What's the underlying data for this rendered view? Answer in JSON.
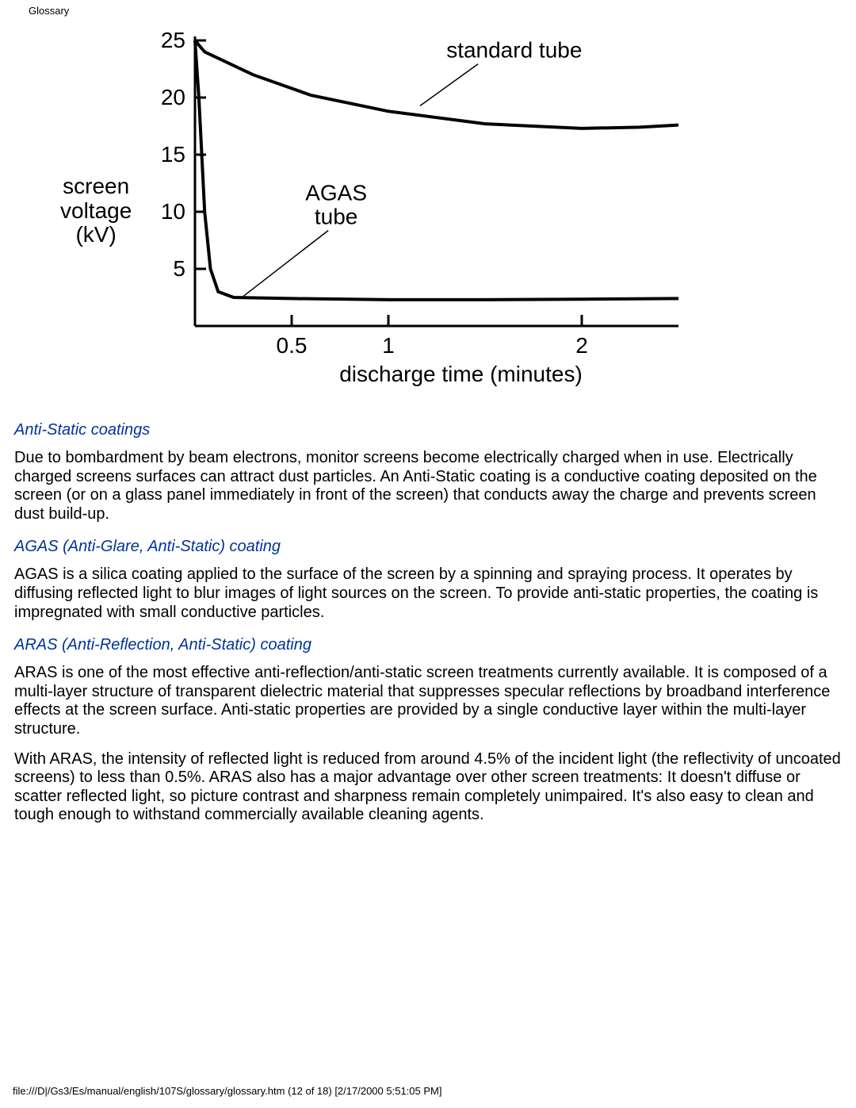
{
  "header": {
    "title": "Glossary"
  },
  "chart": {
    "type": "line",
    "ylabel_line1": "screen",
    "ylabel_line2": "voltage",
    "ylabel_line3": "(kV)",
    "xlabel": "discharge time (minutes)",
    "y_ticks": [
      {
        "value": 5,
        "label": "5"
      },
      {
        "value": 10,
        "label": "10"
      },
      {
        "value": 15,
        "label": "15"
      },
      {
        "value": 20,
        "label": "20"
      },
      {
        "value": 25,
        "label": "25"
      }
    ],
    "x_ticks": [
      {
        "value": 0.5,
        "label": "0.5"
      },
      {
        "value": 1,
        "label": "1"
      },
      {
        "value": 2,
        "label": "2"
      }
    ],
    "ylim": [
      0,
      25
    ],
    "xlim": [
      0,
      2.5
    ],
    "curves": {
      "standard": {
        "label": "standard tube",
        "color": "#000000",
        "width": 4,
        "points": [
          [
            0,
            25
          ],
          [
            0.05,
            24
          ],
          [
            0.3,
            22
          ],
          [
            0.6,
            20.2
          ],
          [
            1.0,
            18.8
          ],
          [
            1.5,
            17.7
          ],
          [
            2.0,
            17.3
          ],
          [
            2.3,
            17.4
          ],
          [
            2.5,
            17.6
          ]
        ],
        "label_anchor": [
          1.3,
          23.5
        ],
        "leader_to": [
          1.0,
          19.0
        ]
      },
      "agas": {
        "label_line1": "AGAS",
        "label_line2": "tube",
        "color": "#000000",
        "width": 4,
        "points": [
          [
            0,
            25
          ],
          [
            0.02,
            20
          ],
          [
            0.05,
            10
          ],
          [
            0.08,
            5
          ],
          [
            0.12,
            3
          ],
          [
            0.2,
            2.5
          ],
          [
            0.5,
            2.4
          ],
          [
            1.0,
            2.3
          ],
          [
            1.5,
            2.3
          ],
          [
            2.0,
            2.35
          ],
          [
            2.5,
            2.4
          ]
        ],
        "label_anchor": [
          0.73,
          11
        ],
        "leader_to": [
          0.25,
          2.6
        ]
      }
    },
    "axis_color": "#000000",
    "background_color": "#ffffff",
    "tick_fontsize": 28,
    "label_fontsize": 28
  },
  "terms": [
    {
      "id": "anti-static-coatings",
      "heading": "Anti-Static coatings",
      "paragraphs": [
        "Due to bombardment by beam electrons, monitor screens become electrically charged when in use. Electrically charged screens surfaces can attract dust particles. An Anti-Static coating is a conductive coating deposited on the screen (or on a glass panel immediately in front of the screen) that conducts away the charge and prevents screen dust build-up."
      ]
    },
    {
      "id": "agas-coating",
      "heading": "AGAS (Anti-Glare, Anti-Static) coating",
      "paragraphs": [
        "AGAS is a silica coating applied to the surface of the screen by a spinning and spraying process. It operates by diffusing reflected light to blur images of light sources on the screen. To provide anti-static properties, the coating is impregnated with small conductive particles."
      ]
    },
    {
      "id": "aras-coating",
      "heading": "ARAS (Anti-Reflection, Anti-Static) coating",
      "paragraphs": [
        "ARAS is one of the most effective anti-reflection/anti-static screen treatments currently available. It is composed of a multi-layer structure of transparent dielectric material that suppresses specular reflections by broadband interference effects at the screen surface. Anti-static properties are provided by a single conductive layer within the multi-layer structure.",
        "With ARAS, the intensity of reflected light is reduced from around 4.5% of the incident light (the reflectivity of uncoated screens) to less than 0.5%. ARAS also has a major advantage over other screen treatments: It doesn't diffuse or scatter reflected light, so picture contrast and sharpness remain completely unimpaired. It's also easy to clean and tough enough to withstand commercially available cleaning agents."
      ]
    }
  ],
  "footer": {
    "text": "file:///D|/Gs3/Es/manual/english/107S/glossary/glossary.htm (12 of 18) [2/17/2000 5:51:05 PM]"
  }
}
